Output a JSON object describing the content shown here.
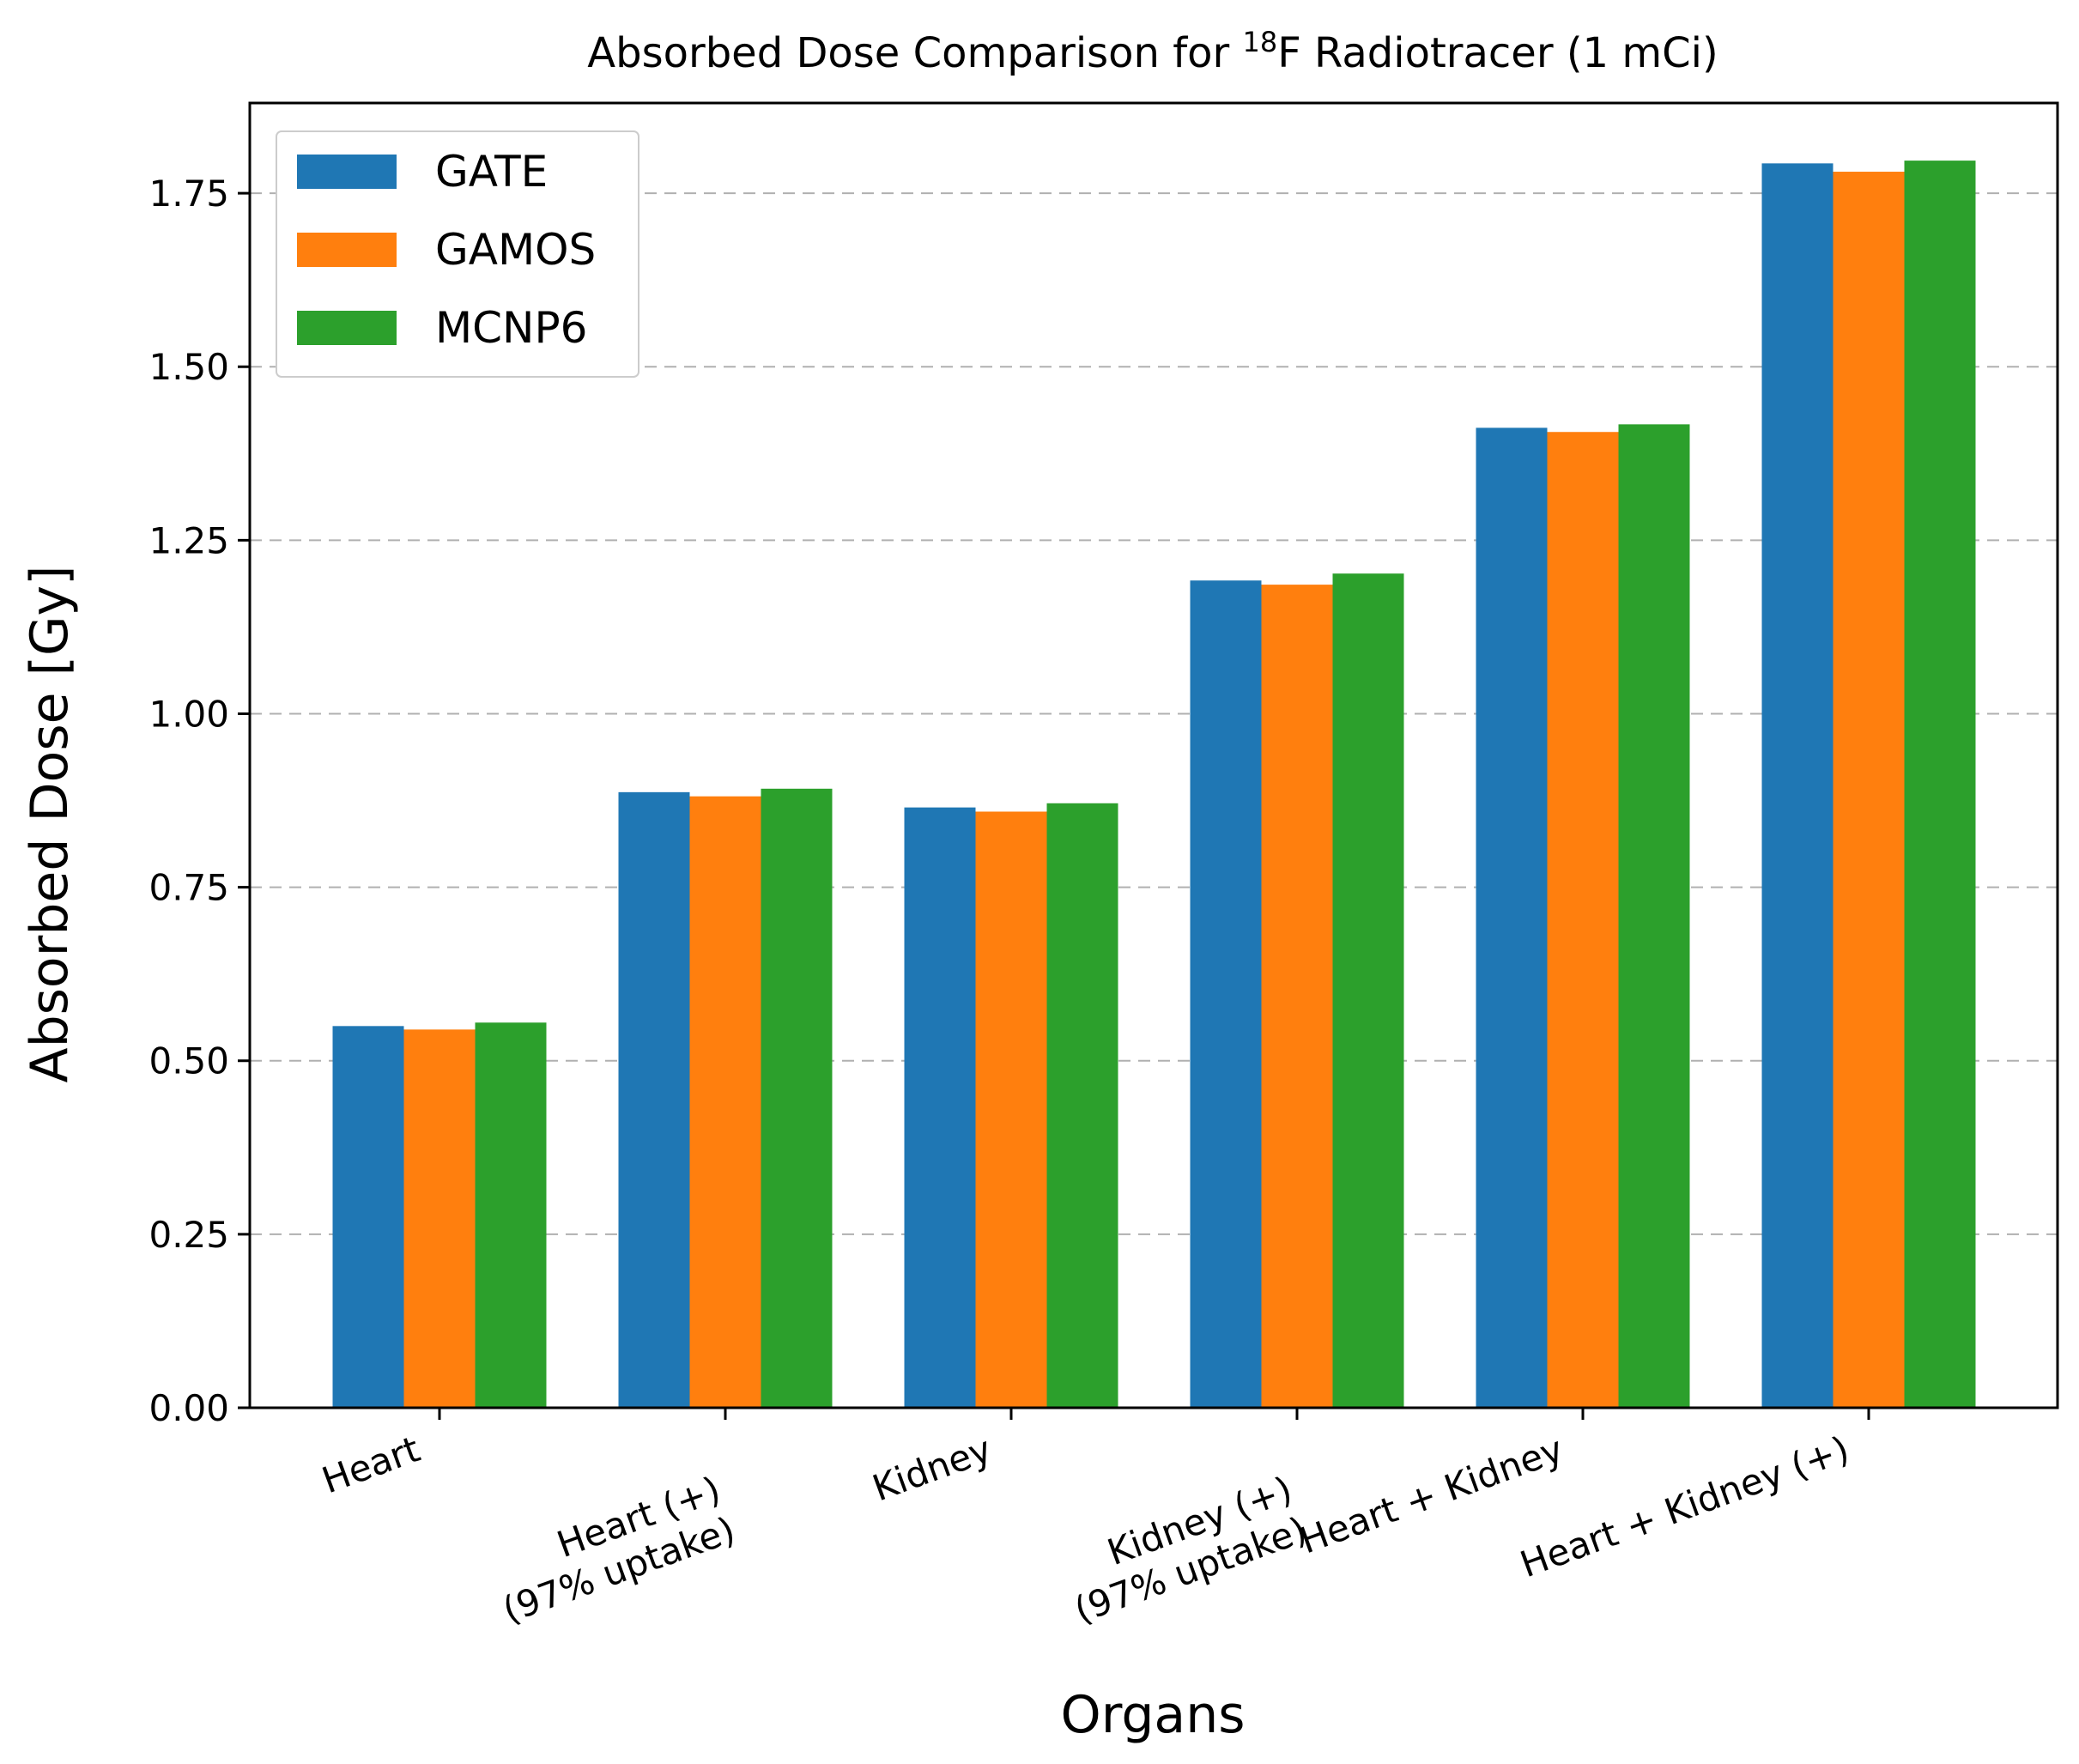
{
  "chart_data": {
    "type": "bar",
    "title": {
      "prefix": "Absorbed Dose Comparison for ",
      "superscript": "18",
      "suffix": "F Radiotracer (1 mCi)"
    },
    "xlabel": "Organs",
    "ylabel": "Absorbed Dose [Gy]",
    "ylim": [
      0,
      1.88
    ],
    "yticks": [
      "0.00",
      "0.25",
      "0.50",
      "0.75",
      "1.00",
      "1.25",
      "1.50",
      "1.75"
    ],
    "grid": true,
    "legend_position": "top-left",
    "categories": [
      [
        "Heart"
      ],
      [
        "Heart (+)",
        "(97% uptake)"
      ],
      [
        "Kidney"
      ],
      [
        "Kidney (+)",
        "(97% uptake)"
      ],
      [
        "Heart + Kidney"
      ],
      [
        "Heart + Kidney (+)"
      ]
    ],
    "series": [
      {
        "name": "GATE",
        "color": "#1f77b4",
        "values": [
          0.55,
          0.887,
          0.865,
          1.192,
          1.412,
          1.793
        ]
      },
      {
        "name": "GAMOS",
        "color": "#ff7f0e",
        "values": [
          0.545,
          0.881,
          0.859,
          1.186,
          1.406,
          1.781
        ]
      },
      {
        "name": "MCNP6",
        "color": "#2ca02c",
        "values": [
          0.555,
          0.892,
          0.871,
          1.202,
          1.417,
          1.797
        ]
      }
    ]
  }
}
